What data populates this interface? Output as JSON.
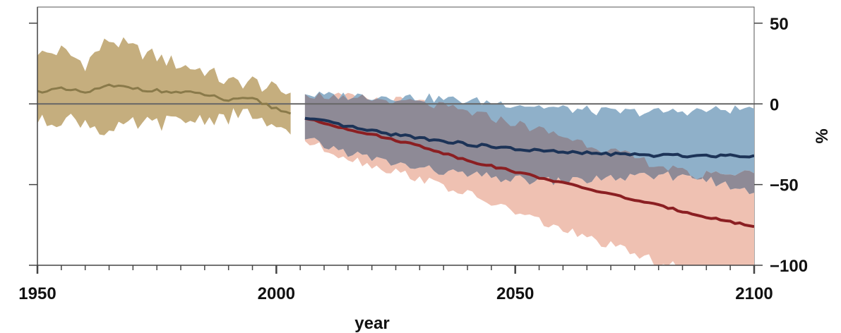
{
  "chart_data": {
    "type": "area",
    "title": "",
    "xlabel": "year",
    "ylabel": "%",
    "xlim": [
      1950,
      2100
    ],
    "ylim": [
      -100,
      60
    ],
    "x_ticks": [
      1950,
      2000,
      2050,
      2100
    ],
    "y_ticks": [
      50,
      0,
      -50,
      -100
    ],
    "y_tick_labels": [
      "50",
      "0",
      "−50",
      "−100"
    ],
    "grid": false,
    "zero_line": true,
    "colors": {
      "historical_band": "#c5ae7e",
      "historical_line": "#8a7a4a",
      "scenario_low_band": "#8fb0c9",
      "scenario_low_line": "#1c3357",
      "scenario_high_band": "#efc1b2",
      "scenario_high_line": "#8b1f22",
      "overlap_band": "#8e8a96",
      "axis": "#555555"
    },
    "series": [
      {
        "id": "historical",
        "x": [
          1950,
          1955,
          1960,
          1965,
          1970,
          1975,
          1980,
          1985,
          1990,
          1995,
          2000,
          2003
        ],
        "mean": [
          8,
          9,
          7,
          11,
          10,
          8,
          7,
          6,
          2,
          3,
          -3,
          -6
        ],
        "upper": [
          30,
          33,
          25,
          40,
          34,
          29,
          24,
          21,
          13,
          14,
          8,
          7
        ],
        "lower": [
          -12,
          -9,
          -11,
          -18,
          -13,
          -12,
          -11,
          -9,
          -8,
          -6,
          -18,
          -19
        ]
      },
      {
        "id": "scenario_low",
        "x": [
          2006,
          2010,
          2020,
          2030,
          2040,
          2050,
          2060,
          2070,
          2080,
          2090,
          2100
        ],
        "mean": [
          -9,
          -11,
          -17,
          -21,
          -25,
          -28,
          -30,
          -31,
          -32,
          -32,
          -32
        ],
        "upper": [
          6,
          5,
          5,
          4,
          2,
          0,
          -3,
          -5,
          -5,
          -4,
          -3
        ],
        "lower": [
          -22,
          -26,
          -34,
          -40,
          -44,
          -47,
          -48,
          -46,
          -45,
          -44,
          -43
        ]
      },
      {
        "id": "scenario_high",
        "x": [
          2006,
          2010,
          2020,
          2030,
          2040,
          2050,
          2060,
          2070,
          2080,
          2090,
          2100
        ],
        "mean": [
          -9,
          -12,
          -19,
          -26,
          -35,
          -42,
          -49,
          -56,
          -63,
          -70,
          -76
        ],
        "upper": [
          6,
          5,
          3,
          1,
          -5,
          -12,
          -20,
          -29,
          -38,
          -47,
          -55
        ],
        "lower": [
          -23,
          -28,
          -38,
          -46,
          -56,
          -67,
          -78,
          -88,
          -98,
          -106,
          -114
        ]
      }
    ]
  }
}
